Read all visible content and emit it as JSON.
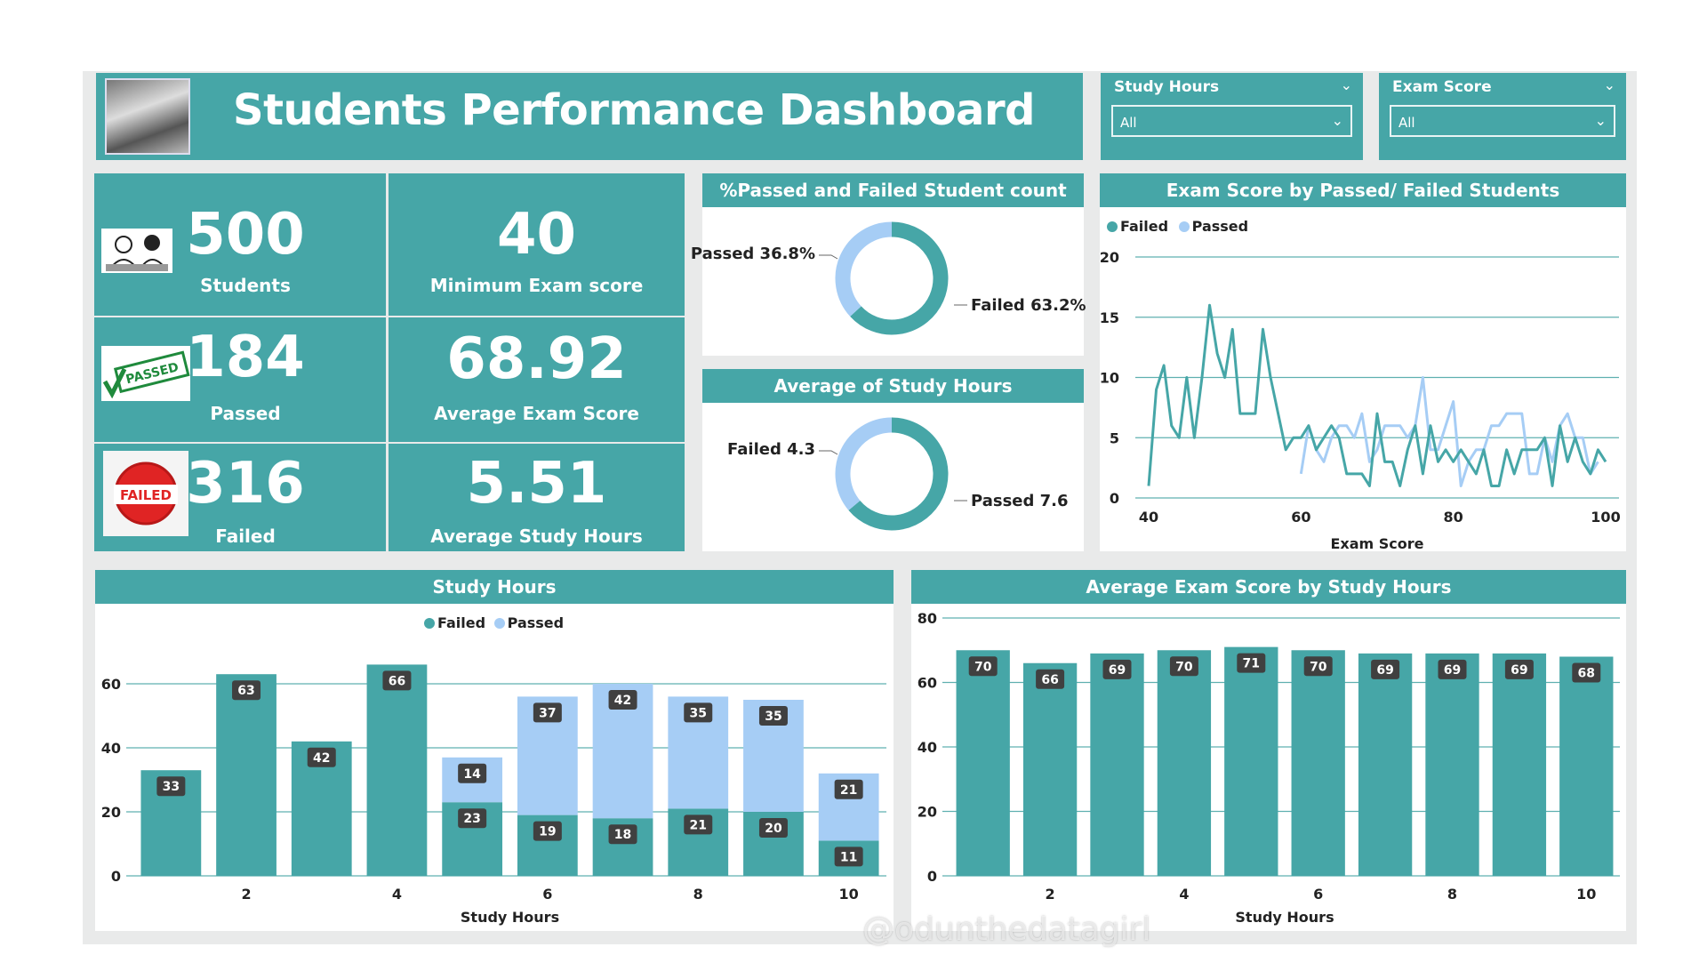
{
  "header": {
    "title": "Students Performance Dashboard",
    "photo_icon": "classroom-photo-icon"
  },
  "slicers": [
    {
      "label": "Study Hours",
      "value": "All"
    },
    {
      "label": "Exam Score",
      "value": "All"
    }
  ],
  "kpis": [
    {
      "value": "500",
      "label": "Students",
      "icon": "students-icon"
    },
    {
      "value": "40",
      "label": "Minimum Exam score"
    },
    {
      "value": "184",
      "label": "Passed",
      "icon": "passed-stamp-icon",
      "stamp_text": "PASSED"
    },
    {
      "value": "68.92",
      "label": "Average Exam Score"
    },
    {
      "value": "316",
      "label": "Failed",
      "icon": "failed-stamp-icon",
      "stamp_text": "FAILED"
    },
    {
      "value": "5.51",
      "label": "Average Study Hours"
    }
  ],
  "colors": {
    "failed": "#46a6a7",
    "passed": "#a6cdf5",
    "label_box": "#404040"
  },
  "chart_data": [
    {
      "type": "pie",
      "title": "%Passed and Failed Student count",
      "donut": true,
      "slices": [
        {
          "name": "Failed",
          "value": 63.2,
          "label": "Failed 63.2%"
        },
        {
          "name": "Passed",
          "value": 36.8,
          "label": "Passed 36.8%"
        }
      ]
    },
    {
      "type": "pie",
      "title": "Average of Study Hours",
      "donut": true,
      "slices": [
        {
          "name": "Passed",
          "value": 7.6,
          "label": "Passed 7.6"
        },
        {
          "name": "Failed",
          "value": 4.3,
          "label": "Failed 4.3"
        }
      ]
    },
    {
      "type": "line",
      "title": "Exam Score by Passed/ Failed Students",
      "xlabel": "Exam Score",
      "ylabel": "",
      "xlim": [
        40,
        100
      ],
      "ylim": [
        0,
        20
      ],
      "xticks": [
        "40",
        "60",
        "80",
        "100"
      ],
      "yticks": [
        "0",
        "5",
        "10",
        "15",
        "20"
      ],
      "legend": "top-left",
      "grid": true,
      "series": [
        {
          "name": "Failed",
          "x_start": 40,
          "values": [
            1,
            9,
            11,
            6,
            5,
            10,
            5,
            10,
            16,
            12,
            10,
            14,
            7,
            7,
            7,
            14,
            10,
            7,
            4,
            5,
            5,
            6,
            4,
            5,
            6,
            5,
            2,
            2,
            2,
            1,
            7,
            3,
            3,
            1,
            4,
            6,
            2,
            6,
            3,
            4,
            3,
            4,
            3,
            2,
            4,
            1,
            1,
            4,
            2,
            4,
            4,
            4,
            5,
            1,
            6,
            3,
            5,
            3,
            2,
            4,
            3
          ]
        },
        {
          "name": "Passed",
          "x_start": 60,
          "values": [
            2,
            6,
            4,
            3,
            5,
            6,
            6,
            5,
            7,
            3,
            4,
            6,
            6,
            6,
            5,
            6,
            10,
            4,
            4,
            6,
            8,
            1,
            3,
            4,
            4,
            6,
            6,
            7,
            7,
            7,
            2,
            2,
            5,
            3,
            6,
            7,
            5,
            5,
            2,
            3
          ]
        }
      ]
    },
    {
      "type": "bar",
      "stacked": true,
      "title": "Study Hours",
      "xlabel": "Study Hours",
      "ylabel": "",
      "ylim": [
        0,
        66
      ],
      "categories": [
        1,
        2,
        3,
        4,
        5,
        6,
        7,
        8,
        9,
        10
      ],
      "xticks": [
        "2",
        "4",
        "6",
        "8",
        "10"
      ],
      "yticks": [
        "0",
        "20",
        "40",
        "60"
      ],
      "legend": "top-center",
      "series": [
        {
          "name": "Failed",
          "values": [
            33,
            63,
            42,
            66,
            23,
            19,
            18,
            21,
            20,
            11
          ]
        },
        {
          "name": "Passed",
          "values": [
            0,
            0,
            0,
            0,
            14,
            37,
            42,
            35,
            35,
            21
          ]
        }
      ]
    },
    {
      "type": "bar",
      "title": "Average Exam Score by Study Hours",
      "xlabel": "Study Hours",
      "ylabel": "",
      "ylim": [
        0,
        80
      ],
      "categories": [
        1,
        2,
        3,
        4,
        5,
        6,
        7,
        8,
        9,
        10
      ],
      "xticks": [
        "2",
        "4",
        "6",
        "8",
        "10"
      ],
      "yticks": [
        "0",
        "20",
        "40",
        "60",
        "80"
      ],
      "series": [
        {
          "name": "Average Exam Score",
          "values": [
            70,
            66,
            69,
            70,
            71,
            70,
            69,
            69,
            69,
            68
          ]
        }
      ]
    }
  ],
  "watermark": "@odunthedatagirl"
}
